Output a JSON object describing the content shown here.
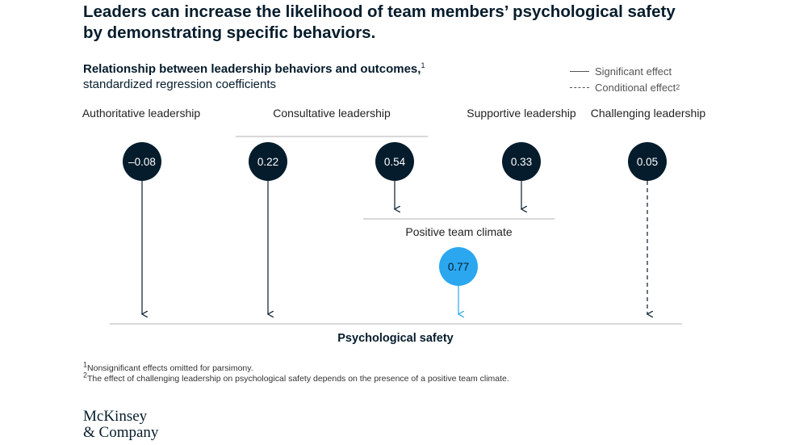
{
  "title": "Leaders can increase the likelihood of team members’ psychological safety by demonstrating specific behaviors.",
  "subtitle": {
    "main": "Relationship between leadership behaviors and outcomes,",
    "main_sup": "1",
    "secondary": "standardized regression coefficients"
  },
  "legend": {
    "significant": "Significant effect",
    "conditional": "Conditional effect",
    "conditional_sup": "2"
  },
  "categories": {
    "authoritative": "Authoritative leadership",
    "consultative": "Consultative leadership",
    "supportive": "Supportive leadership",
    "challenging": "Challenging leadership"
  },
  "nodes": {
    "authoritative": "–0.08",
    "consultative_direct": "0.22",
    "consultative_climate": "0.54",
    "supportive": "0.33",
    "challenging": "0.05",
    "climate": "0.77"
  },
  "climate_label": "Positive team climate",
  "outcome_label": "Psychological safety",
  "footnotes": {
    "one_sup": "1",
    "one": "Nonsignificant effects omitted for parsimony.",
    "two_sup": "2",
    "two": "The effect of challenging leadership on psychological safety depends on the presence of a positive team climate."
  },
  "logo": {
    "line1": "McKinsey",
    "line2": "& Company"
  },
  "colors": {
    "navy": "#051c2c",
    "accent_blue": "#2ba7f0",
    "line": "#b0b0b0"
  }
}
